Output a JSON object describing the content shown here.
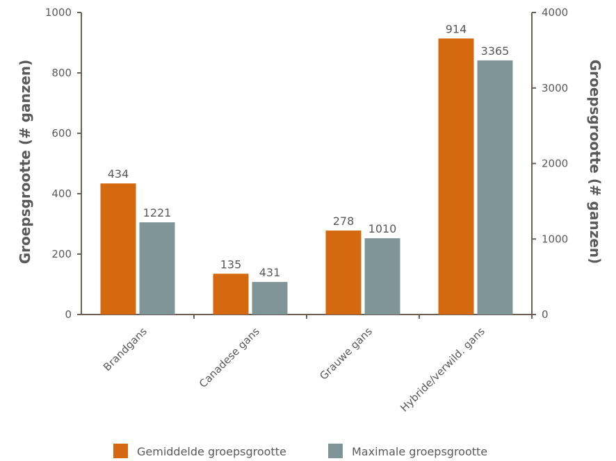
{
  "chart_data": {
    "type": "bar",
    "categories": [
      "Brandgans",
      "Canadese gans",
      "Grauwe gans",
      "Hybride/verwild. gans"
    ],
    "series": [
      {
        "name": "Gemiddelde groepsgrootte",
        "values": [
          434,
          135,
          278,
          914
        ],
        "axis": "left",
        "color": "#d4690f"
      },
      {
        "name": "Maximale groepsgrootte",
        "values": [
          1221,
          431,
          1010,
          3365
        ],
        "axis": "right",
        "color": "#7f9598"
      }
    ],
    "ylabel_left": "Groepsgrootte (# ganzen)",
    "ylabel_right": "Groepsgrootte (# ganzen)",
    "ylim_left": [
      0,
      1000
    ],
    "ylim_right": [
      0,
      4000
    ],
    "yticks_left": [
      0,
      200,
      400,
      600,
      800,
      1000
    ],
    "yticks_right": [
      0,
      1000,
      2000,
      3000,
      4000
    ],
    "grid": false,
    "legend_position": "bottom",
    "axis_color": "#6b5e56"
  }
}
